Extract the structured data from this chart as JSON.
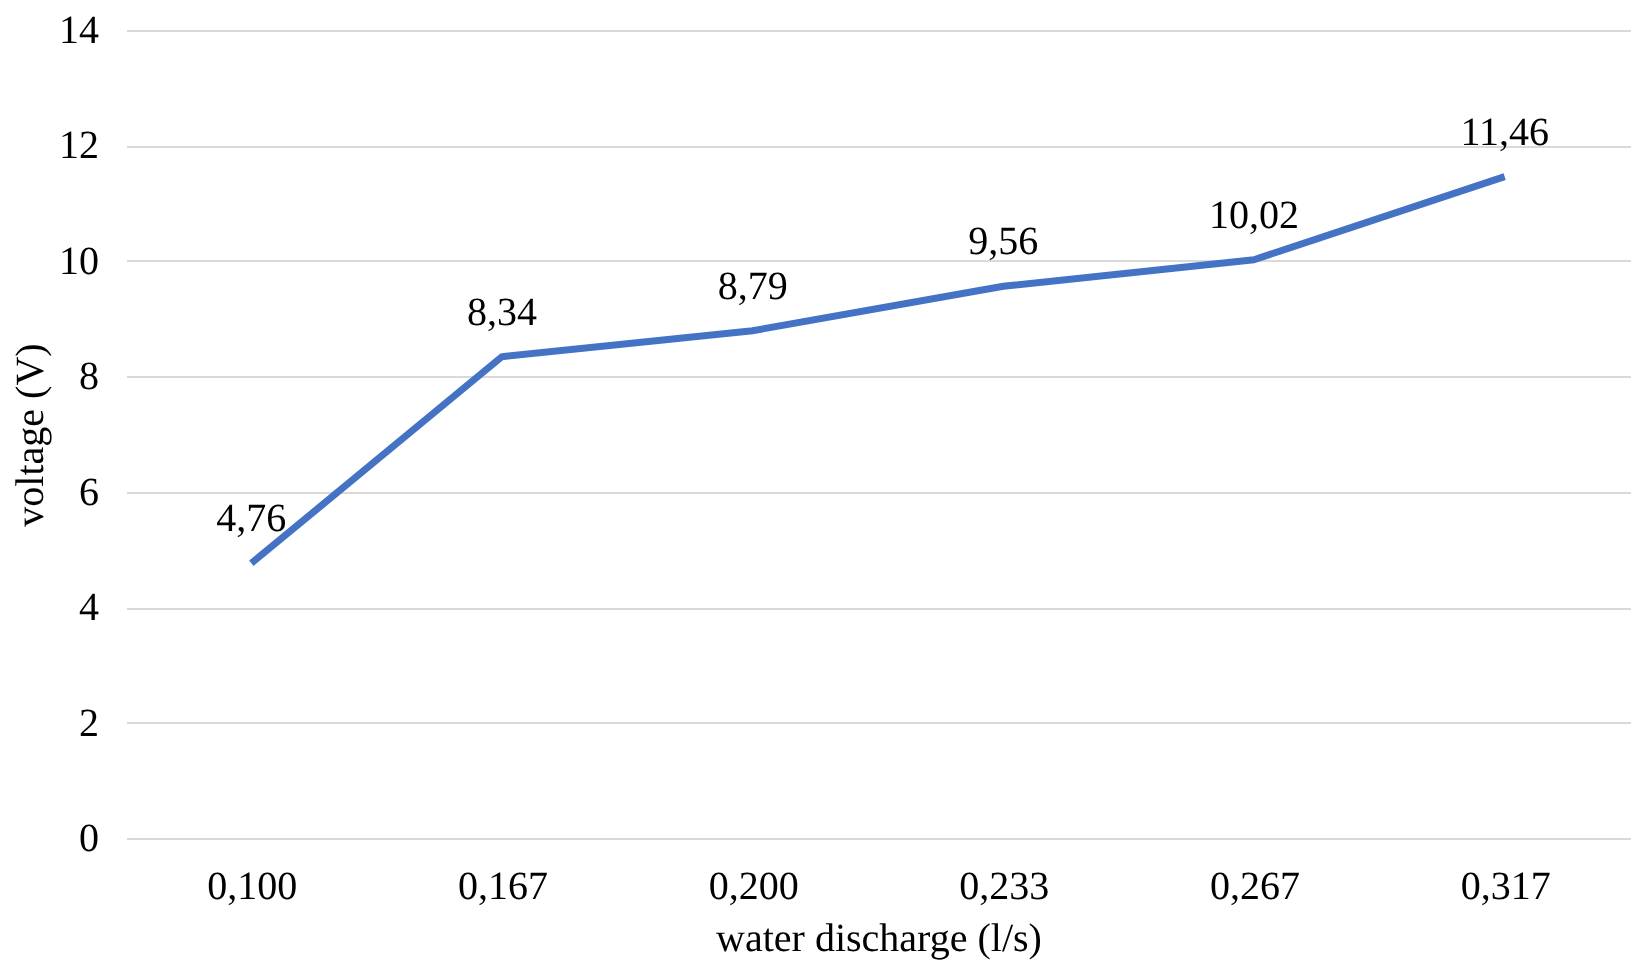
{
  "chart_data": {
    "type": "line",
    "xlabel": "water discharge (l/s)",
    "ylabel": "voltage (V)",
    "categories": [
      "0,100",
      "0,167",
      "0,200",
      "0,233",
      "0,267",
      "0,317"
    ],
    "series": [
      {
        "color": "#4472c4",
        "values": [
          4.76,
          8.34,
          8.79,
          9.56,
          10.02,
          11.46
        ],
        "value_labels": [
          "4,76",
          "8,34",
          "8,79",
          "9,56",
          "10,02",
          "11,46"
        ]
      }
    ],
    "ylim": [
      0,
      14
    ],
    "yticks": [
      0,
      2,
      4,
      6,
      8,
      10,
      12,
      14
    ],
    "grid": "y",
    "marker": "none",
    "line_style": "solid"
  }
}
